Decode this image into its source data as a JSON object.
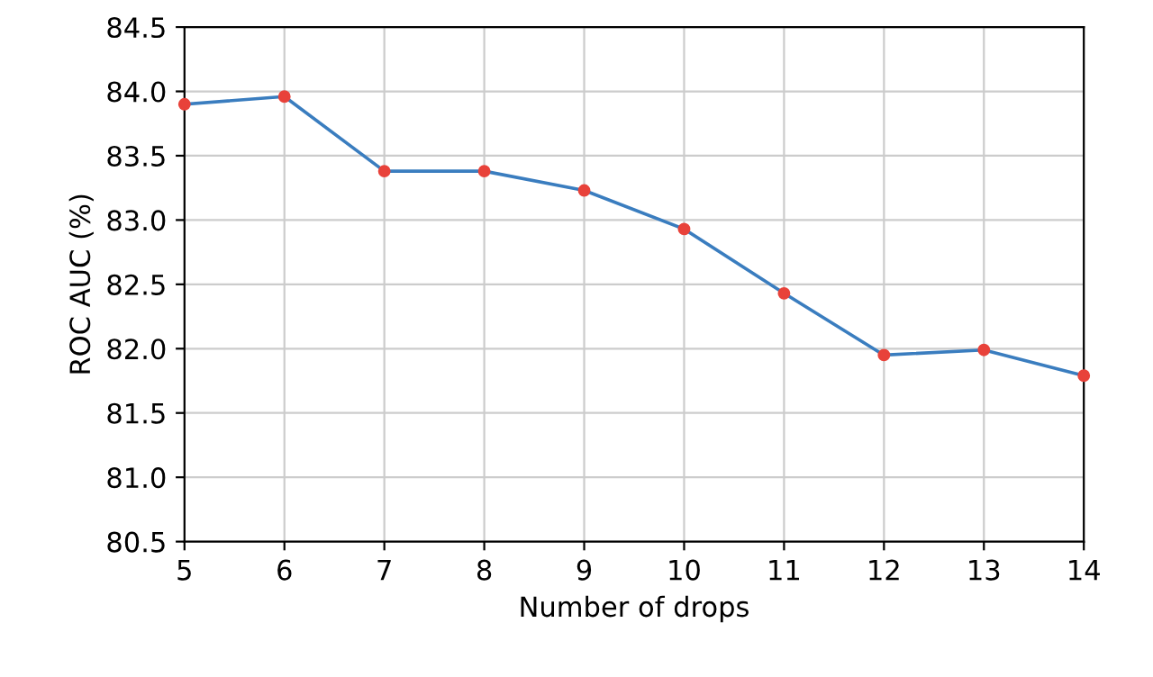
{
  "chart_data": {
    "type": "line",
    "xlabel": "Number of drops",
    "ylabel": "ROC AUC (%)",
    "x": [
      5,
      6,
      7,
      8,
      9,
      10,
      11,
      12,
      13,
      14
    ],
    "series": [
      {
        "color": "#3a7dbf",
        "values": [
          83.9,
          83.96,
          83.38,
          83.38,
          83.23,
          82.93,
          82.43,
          81.95,
          81.99,
          81.79
        ]
      }
    ],
    "marker": "circle",
    "line_style": "solid",
    "xlim": [
      5,
      14
    ],
    "xticks": [
      5,
      6,
      7,
      8,
      9,
      10,
      11,
      12,
      13,
      14
    ],
    "ylim": [
      80.5,
      84.5
    ],
    "yticks": [
      {
        "value": 80.5,
        "label": "80.5"
      },
      {
        "value": 81.0,
        "label": "81.0"
      },
      {
        "value": 81.5,
        "label": "81.5"
      },
      {
        "value": 82.0,
        "label": "82.0"
      },
      {
        "value": 82.5,
        "label": "82.5"
      },
      {
        "value": 83.0,
        "label": "83.0"
      },
      {
        "value": 83.5,
        "label": "83.5"
      },
      {
        "value": 84.0,
        "label": "84.0"
      },
      {
        "value": 84.5,
        "label": "84.5"
      }
    ],
    "grid": true
  }
}
